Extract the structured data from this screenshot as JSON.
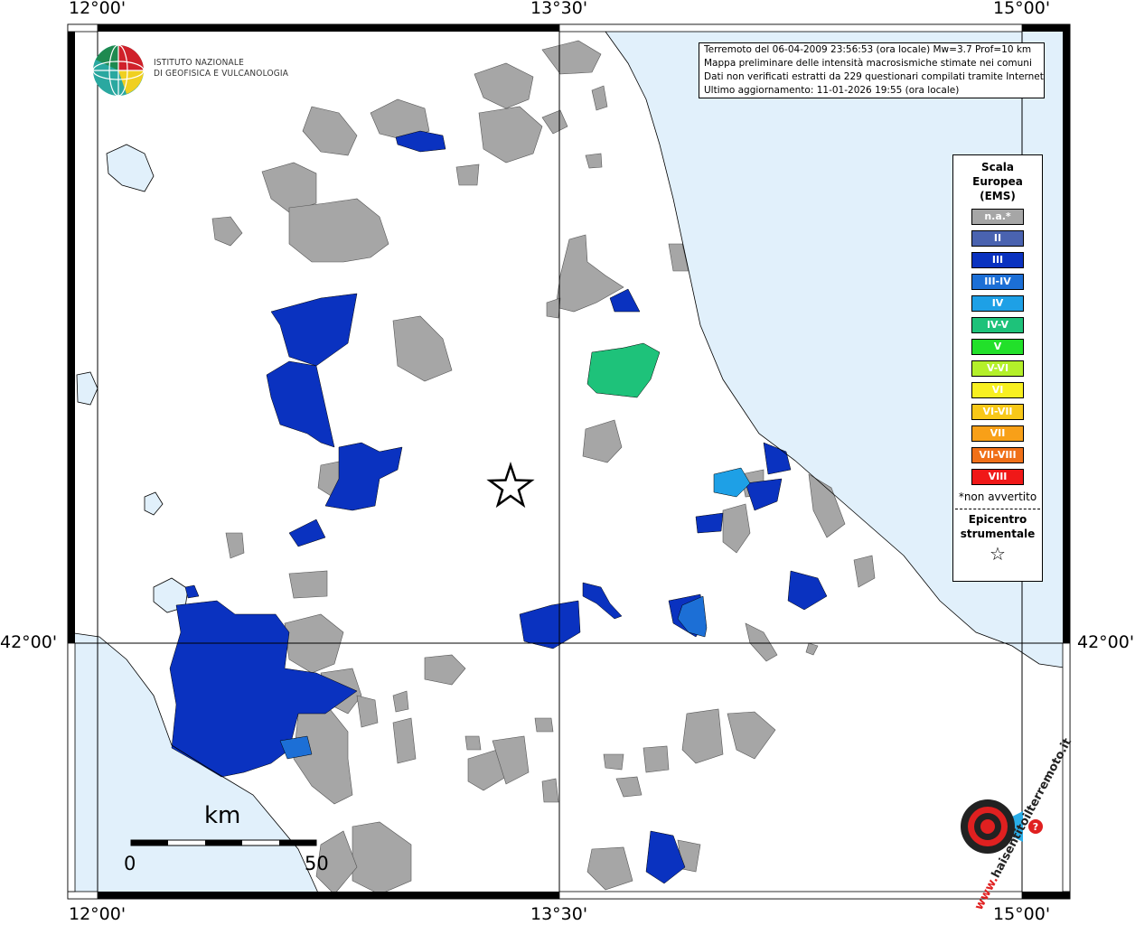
{
  "map": {
    "lon_labels": [
      "12°00'",
      "13°30'",
      "15°00'"
    ],
    "lat_labels": [
      "42°00'"
    ]
  },
  "info": {
    "line1": "Terremoto del 06-04-2009 23:56:53 (ora locale) Mw=3.7 Prof=10 km",
    "line2": "Mappa preliminare delle intensità macrosismiche stimate nei comuni",
    "line3": "Dati non verificati estratti da 229 questionari compilati tramite Internet.",
    "line4": "Ultimo aggiornamento: 11-01-2026 19:55 (ora locale)"
  },
  "logo": {
    "line1": "ISTITUTO NAZIONALE",
    "line2": "DI GEOFISICA E VULCANOLOGIA"
  },
  "legend": {
    "title": [
      "Scala",
      "Europea",
      "(EMS)"
    ],
    "items": [
      {
        "label": "n.a.*",
        "color": "#a6a6a6"
      },
      {
        "label": "II",
        "color": "#4a63b0"
      },
      {
        "label": "III",
        "color": "#0a32c0"
      },
      {
        "label": "III-IV",
        "color": "#1c6fd6"
      },
      {
        "label": "IV",
        "color": "#1ea0e6"
      },
      {
        "label": "IV-V",
        "color": "#1ec27a"
      },
      {
        "label": "V",
        "color": "#22e02a"
      },
      {
        "label": "V-VI",
        "color": "#b4f02a"
      },
      {
        "label": "VI",
        "color": "#f8f020"
      },
      {
        "label": "VI-VII",
        "color": "#f8c818"
      },
      {
        "label": "VII",
        "color": "#f8a018"
      },
      {
        "label": "VII-VIII",
        "color": "#f07018"
      },
      {
        "label": "VIII",
        "color": "#f01818"
      }
    ],
    "note": "*non avvertito",
    "epicentre_label": [
      "Epicentro",
      "strumentale"
    ],
    "epicentre_symbol": "☆"
  },
  "scalebar": {
    "unit": "km",
    "min": "0",
    "max": "50"
  },
  "badge": {
    "text": "haisentitoilterremoto.it",
    "prefix": "www."
  }
}
